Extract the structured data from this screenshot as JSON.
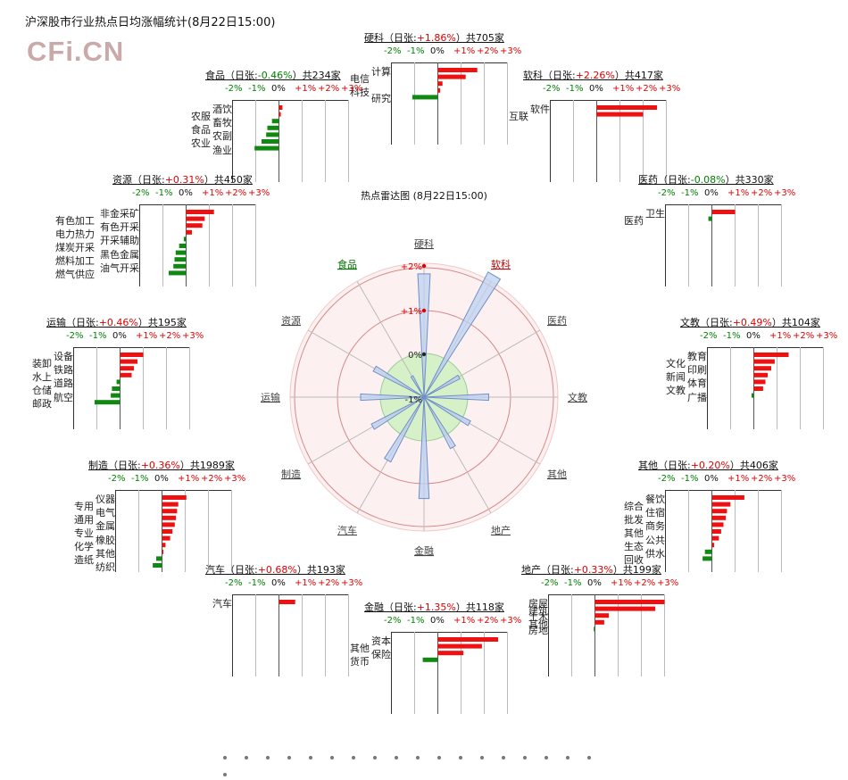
{
  "page_title": "沪深股市行业热点日均涨幅统计(8月22日15:00)",
  "logo_text": "CFi.CN",
  "tick_labels": [
    "-2%",
    "-1%",
    "0%",
    "+1%",
    "+2%",
    "+3%"
  ],
  "radar": {
    "title": "热点雷达图 (8月22日15:00)",
    "ring_labels": [
      "+2%",
      "+1%",
      "0%",
      "-1%"
    ],
    "axes": [
      {
        "label": "硬科",
        "value": 1.86,
        "style": "plain"
      },
      {
        "label": "软科",
        "value": 2.26,
        "style": "red"
      },
      {
        "label": "医药",
        "value": -0.08,
        "style": "plain"
      },
      {
        "label": "文教",
        "value": 0.49,
        "style": "plain"
      },
      {
        "label": "其他",
        "value": 0.2,
        "style": "plain"
      },
      {
        "label": "地产",
        "value": 0.33,
        "style": "plain"
      },
      {
        "label": "金融",
        "value": 1.35,
        "style": "plain"
      },
      {
        "label": "汽车",
        "value": 0.68,
        "style": "plain"
      },
      {
        "label": "制造",
        "value": 0.36,
        "style": "plain"
      },
      {
        "label": "运输",
        "value": 0.46,
        "style": "plain"
      },
      {
        "label": "资源",
        "value": 0.31,
        "style": "plain"
      },
      {
        "label": "食品",
        "value": -0.46,
        "style": "green"
      }
    ]
  },
  "chart_data": {
    "type": "bar",
    "title": "沪深股市行业热点日均涨幅统计(8月22日15:00)",
    "xlim": [
      -2,
      3
    ],
    "x_ticks": [
      "-2%",
      "-1%",
      "0%",
      "+1%",
      "+2%",
      "+3%"
    ],
    "panels": [
      {
        "id": "ying",
        "name": "硬科",
        "change": "+1.86%",
        "count": "705",
        "bars": [
          {
            "label": "计算",
            "value": 1.7
          },
          {
            "label": "电信",
            "value": 1.2
          },
          {
            "label": "",
            "value": 0.2
          },
          {
            "label": "科技",
            "value": 0.1
          },
          {
            "label": "研究",
            "value": -1.1
          }
        ]
      },
      {
        "id": "shipin",
        "name": "食品",
        "change": "-0.46%",
        "count": "234",
        "bars": [
          {
            "label": "酒饮",
            "value": 0.15
          },
          {
            "label": "农服",
            "value": 0.08
          },
          {
            "label": "畜牧",
            "value": -0.3
          },
          {
            "label": "食品",
            "value": -0.5
          },
          {
            "label": "农副",
            "value": -0.55
          },
          {
            "label": "农业",
            "value": -0.75
          },
          {
            "label": "渔业",
            "value": -1.05
          }
        ]
      },
      {
        "id": "ruan",
        "name": "软科",
        "change": "+2.26%",
        "count": "417",
        "bars": [
          {
            "label": "软件",
            "value": 2.6
          },
          {
            "label": "互联",
            "value": 2.0
          }
        ]
      },
      {
        "id": "ziyuan",
        "name": "资源",
        "change": "+0.31%",
        "count": "450",
        "bars": [
          {
            "label": "非金采矿",
            "value": 1.2
          },
          {
            "label": "有色加工",
            "value": 0.8
          },
          {
            "label": "有色开采",
            "value": 0.7
          },
          {
            "label": "电力热力",
            "value": 0.25
          },
          {
            "label": "开采辅助",
            "value": -0.1
          },
          {
            "label": "煤炭开采",
            "value": -0.3
          },
          {
            "label": "黑色金属",
            "value": -0.45
          },
          {
            "label": "燃料加工",
            "value": -0.5
          },
          {
            "label": "油气开采",
            "value": -0.55
          },
          {
            "label": "燃气供应",
            "value": -0.75
          }
        ]
      },
      {
        "id": "yiyao",
        "name": "医药",
        "change": "-0.08%",
        "count": "330",
        "bars": [
          {
            "label": "卫生",
            "value": 1.0
          },
          {
            "label": "医药",
            "value": -0.15
          }
        ]
      },
      {
        "id": "yunshu",
        "name": "运输",
        "change": "+0.46%",
        "count": "195",
        "bars": [
          {
            "label": "设备",
            "value": 1.0
          },
          {
            "label": "装卸",
            "value": 0.75
          },
          {
            "label": "铁路",
            "value": 0.6
          },
          {
            "label": "水上",
            "value": 0.5
          },
          {
            "label": "道路",
            "value": -0.15
          },
          {
            "label": "仓储",
            "value": -0.35
          },
          {
            "label": "航空",
            "value": -0.4
          },
          {
            "label": "邮政",
            "value": -1.1
          }
        ]
      },
      {
        "id": "wenjiao",
        "name": "文教",
        "change": "+0.49%",
        "count": "104",
        "bars": [
          {
            "label": "教育",
            "value": 1.5
          },
          {
            "label": "文化",
            "value": 0.9
          },
          {
            "label": "印刷",
            "value": 0.75
          },
          {
            "label": "新闻",
            "value": 0.6
          },
          {
            "label": "体育",
            "value": 0.5
          },
          {
            "label": "文教",
            "value": 0.4
          },
          {
            "label": "广播",
            "value": -0.1
          }
        ]
      },
      {
        "id": "zhizao",
        "name": "制造",
        "change": "+0.36%",
        "count": "1989",
        "bars": [
          {
            "label": "仪器",
            "value": 1.05
          },
          {
            "label": "专用",
            "value": 0.7
          },
          {
            "label": "电气",
            "value": 0.65
          },
          {
            "label": "通用",
            "value": 0.6
          },
          {
            "label": "金属",
            "value": 0.55
          },
          {
            "label": "专业",
            "value": 0.45
          },
          {
            "label": "橡胶",
            "value": 0.35
          },
          {
            "label": "化学",
            "value": 0.15
          },
          {
            "label": "其他",
            "value": 0.05
          },
          {
            "label": "造纸",
            "value": -0.25
          },
          {
            "label": "纺织",
            "value": -0.4
          }
        ]
      },
      {
        "id": "qita",
        "name": "其他",
        "change": "+0.20%",
        "count": "406",
        "bars": [
          {
            "label": "餐饮",
            "value": 1.4
          },
          {
            "label": "综合",
            "value": 0.8
          },
          {
            "label": "住宿",
            "value": 0.65
          },
          {
            "label": "批发",
            "value": 0.6
          },
          {
            "label": "商务",
            "value": 0.5
          },
          {
            "label": "其他",
            "value": 0.4
          },
          {
            "label": "公共",
            "value": 0.3
          },
          {
            "label": "生态",
            "value": 0.1
          },
          {
            "label": "供水",
            "value": -0.3
          },
          {
            "label": "回收",
            "value": -0.4
          }
        ]
      },
      {
        "id": "qiche",
        "name": "汽车",
        "change": "+0.68%",
        "count": "193",
        "bars": [
          {
            "label": "汽车",
            "value": 0.7
          }
        ]
      },
      {
        "id": "dichan",
        "name": "地产",
        "change": "+0.33%",
        "count": "199",
        "bars": [
          {
            "label": "房屋",
            "value": 3.0
          },
          {
            "label": "建筑",
            "value": 2.6
          },
          {
            "label": "土木",
            "value": 0.6
          },
          {
            "label": "其他",
            "value": 0.4
          },
          {
            "label": "房地",
            "value": -0.05
          }
        ]
      },
      {
        "id": "jinrong",
        "name": "金融",
        "change": "+1.35%",
        "count": "118",
        "bars": [
          {
            "label": "资本",
            "value": 2.6
          },
          {
            "label": "其他",
            "value": 1.9
          },
          {
            "label": "保险",
            "value": 1.1
          },
          {
            "label": "货币",
            "value": -0.65
          }
        ]
      }
    ]
  },
  "panel_text": {
    "ying": {
      "day": "日张",
      "count_label": "共705家"
    },
    "shipin": {
      "day": "日张",
      "count_label": "共234家"
    },
    "ruan": {
      "day": "日张",
      "count_label": "共417家"
    },
    "ziyuan": {
      "day": "日张",
      "count_label": "共450家"
    },
    "yiyao": {
      "day": "日张",
      "count_label": "共330家"
    },
    "yunshu": {
      "day": "日张",
      "count_label": "共195家"
    },
    "wenjiao": {
      "day": "日张",
      "count_label": "共104家"
    },
    "zhizao": {
      "day": "日张",
      "count_label": "共1989家"
    },
    "qita": {
      "day": "日张",
      "count_label": "共406家"
    },
    "qiche": {
      "day": "日张",
      "count_label": "共193家"
    },
    "dichan": {
      "day": "日张",
      "count_label": "共199家"
    },
    "jinrong": {
      "day": "日张",
      "count_label": "共118家"
    }
  },
  "colors": {
    "up": "#ee1111",
    "down": "#118811",
    "grid": "#999999",
    "radar_fill": "#bcd2f0",
    "radar_center": "#d6f0c8",
    "rings": "#e0a0a0"
  },
  "pager_dot_count": 19
}
